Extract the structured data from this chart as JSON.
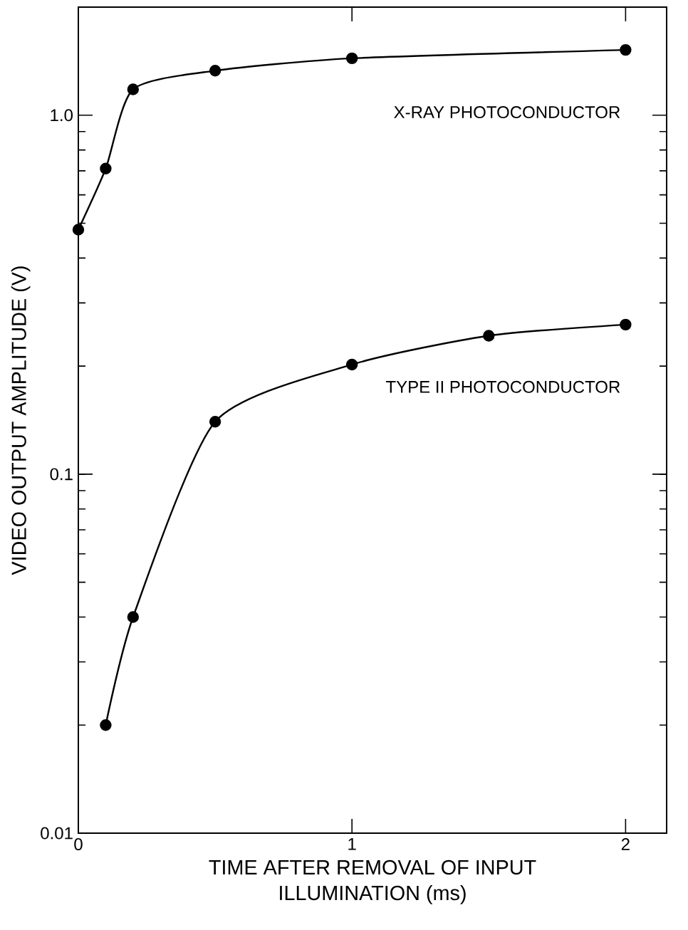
{
  "chart_data": {
    "type": "line",
    "xlabel": "TIME AFTER REMOVAL OF INPUT ILLUMINATION (ms)",
    "ylabel": "VIDEO OUTPUT AMPLITUDE (V)",
    "log": "y",
    "xlim": [
      0,
      2.15
    ],
    "ylim": [
      0.01,
      2
    ],
    "xticks": [
      0,
      1,
      2
    ],
    "yticks": [
      {
        "value": 0.01,
        "label": "0.01"
      },
      {
        "value": 0.1,
        "label": "0.1"
      },
      {
        "value": 1,
        "label": "1.0"
      }
    ],
    "marker": "circle",
    "line_style": "solid",
    "grid": false,
    "series": [
      {
        "name": "X-RAY PHOTOCONDUCTOR",
        "color": "#000000",
        "x": [
          0,
          0.1,
          0.2,
          0.5,
          1,
          2
        ],
        "values": [
          0.48,
          0.71,
          1.18,
          1.33,
          1.44,
          1.52
        ]
      },
      {
        "name": "TYPE II PHOTOCONDUCTOR",
        "color": "#000000",
        "x": [
          0.1,
          0.2,
          0.5,
          1,
          1.5,
          2
        ],
        "values": [
          0.02,
          0.04,
          0.14,
          0.202,
          0.243,
          0.261
        ]
      }
    ]
  }
}
